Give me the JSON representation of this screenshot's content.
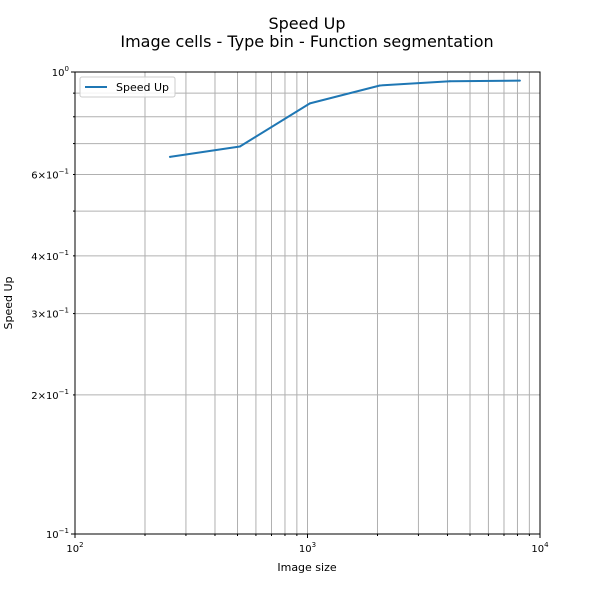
{
  "chart_data": {
    "type": "line",
    "title": "Speed Up",
    "subtitle": "Image cells - Type bin - Function segmentation",
    "xlabel": "Image size",
    "ylabel": "Speed Up",
    "xscale": "log",
    "yscale": "log",
    "xlim": [
      100,
      10000
    ],
    "ylim": [
      0.1,
      1.0
    ],
    "grid": "major and minor",
    "legend_position": "top-left",
    "x_tick_labels": [
      {
        "value": 100,
        "base": "10",
        "exp": "2"
      },
      {
        "value": 1000,
        "base": "10",
        "exp": "3"
      },
      {
        "value": 10000,
        "base": "10",
        "exp": "4"
      }
    ],
    "y_tick_labels": [
      {
        "value": 0.1,
        "mant": "",
        "base": "10",
        "exp": "−1"
      },
      {
        "value": 0.2,
        "mant": "2×",
        "base": "10",
        "exp": "−1"
      },
      {
        "value": 0.3,
        "mant": "3×",
        "base": "10",
        "exp": "−1"
      },
      {
        "value": 0.4,
        "mant": "4×",
        "base": "10",
        "exp": "−1"
      },
      {
        "value": 0.6,
        "mant": "6×",
        "base": "10",
        "exp": "−1"
      },
      {
        "value": 1.0,
        "mant": "",
        "base": "10",
        "exp": "0"
      }
    ],
    "series": [
      {
        "name": "Speed Up",
        "color": "#1f77b4",
        "x": [
          256,
          512,
          1024,
          2048,
          4096,
          8192
        ],
        "y": [
          0.655,
          0.69,
          0.855,
          0.935,
          0.955,
          0.958
        ]
      }
    ]
  }
}
